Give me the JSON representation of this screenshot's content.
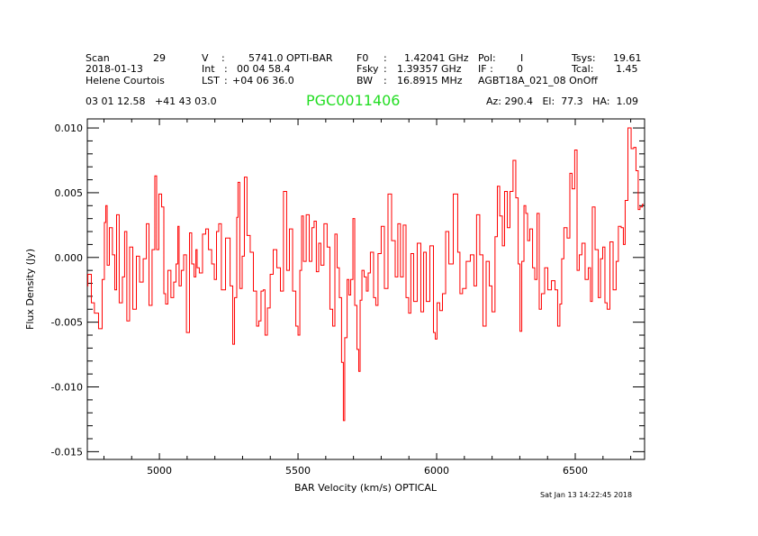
{
  "header": {
    "scan_label": "Scan",
    "scan_value": "29",
    "date": "2018-01-13",
    "observer": "Helene Courtois",
    "v_label": "V",
    "v_sep": ":",
    "v_value": "5741.0 OPTI-BAR",
    "int_label": "Int",
    "int_sep": ":",
    "int_value": "00 04 58.4",
    "lst_label": "LST",
    "lst_sep": ":",
    "lst_value": "+04 06 36.0",
    "f0_label": "F0",
    "f0_sep": ":",
    "f0_value": "1.42041 GHz",
    "fsky_label": "Fsky",
    "fsky_sep": ":",
    "fsky_value": "1.39357 GHz",
    "bw_label": "BW",
    "bw_sep": ":",
    "bw_value": "16.8915 MHz",
    "pol_label": "Pol:",
    "pol_value": "I",
    "if_label": "IF :",
    "if_value": "0",
    "project": "AGBT18A_021_08 OnOff",
    "tsys_label": "Tsys:",
    "tsys_value": "19.61",
    "tcal_label": "Tcal:",
    "tcal_value": "1.45",
    "coords": "03 01 12.58   +41 43 03.0",
    "source": "PGC0011406",
    "az_el_ha": "Az: 290.4   El:  77.3   HA:  1.09",
    "source_color": "#22dd22"
  },
  "timestamp": "Sat Jan 13 14:22:45 2018",
  "chart_data": {
    "type": "line",
    "title": "PGC0011406",
    "xlabel": "BAR Velocity (km/s) OPTICAL",
    "ylabel": "Flux Density (Jy)",
    "xlim": [
      4740,
      6750
    ],
    "ylim": [
      -0.0156,
      0.0107
    ],
    "xticks": [
      5000,
      5500,
      6000,
      6500
    ],
    "xtick_labels": [
      "5000",
      "5500",
      "6000",
      "6500"
    ],
    "yticks": [
      0.01,
      0.005,
      0.0,
      -0.005,
      -0.01,
      -0.015
    ],
    "ytick_labels": [
      "0.010",
      "0.005",
      "0.000",
      "-0.005",
      "-0.010",
      "-0.015"
    ],
    "x_minor_step": 100,
    "y_minor_step": 0.001,
    "grid": false,
    "line_color": "#ff0000",
    "series": [
      {
        "x": [
          4734,
          4750,
          4759,
          4772,
          4789,
          4798,
          4805,
          4808,
          4815,
          4824,
          4837,
          4841,
          4850,
          4860,
          4873,
          4876,
          4889,
          4896,
          4912,
          4922,
          4935,
          4948,
          4958,
          4967,
          4980,
          4987,
          4993,
          5003,
          5013,
          5019,
          5026,
          5035,
          5048,
          5055,
          5065,
          5068,
          5074,
          5084,
          5091,
          5104,
          5113,
          5120,
          5130,
          5133,
          5139,
          5149,
          5162,
          5172,
          5182,
          5195,
          5201,
          5211,
          5217,
          5230,
          5247,
          5263,
          5266,
          5276,
          5282,
          5285,
          5295,
          5302,
          5311,
          5321,
          5334,
          5344,
          5357,
          5360,
          5373,
          5376,
          5386,
          5393,
          5406,
          5415,
          5432,
          5441,
          5454,
          5464,
          5474,
          5487,
          5497,
          5503,
          5510,
          5516,
          5523,
          5536,
          5545,
          5555,
          5561,
          5571,
          5578,
          5587,
          5600,
          5610,
          5620,
          5630,
          5636,
          5646,
          5652,
          5662,
          5665,
          5672,
          5682,
          5685,
          5695,
          5701,
          5708,
          5717,
          5721,
          5727,
          5734,
          5743,
          5750,
          5756,
          5766,
          5779,
          5782,
          5795,
          5805,
          5818,
          5831,
          5844,
          5857,
          5863,
          5876,
          5883,
          5896,
          5902,
          5912,
          5922,
          5938,
          5948,
          5958,
          5967,
          5984,
          5993,
          5997,
          6006,
          6016,
          6026,
          6039,
          6049,
          6071,
          6081,
          6087,
          6100,
          6113,
          6130,
          6139,
          6149,
          6162,
          6172,
          6185,
          6195,
          6204,
          6217,
          6221,
          6234,
          6240,
          6250,
          6260,
          6269,
          6282,
          6289,
          6299,
          6302,
          6312,
          6318,
          6325,
          6331,
          6341,
          6351,
          6357,
          6367,
          6373,
          6383,
          6396,
          6406,
          6422,
          6432,
          6441,
          6448,
          6454,
          6464,
          6477,
          6484,
          6493,
          6503,
          6510,
          6519,
          6529,
          6542,
          6552,
          6558,
          6565,
          6578,
          6588,
          6594,
          6604,
          6610,
          6620,
          6630,
          6643,
          6652,
          6659,
          6672,
          6675,
          6685,
          6695,
          6708,
          6714,
          6724,
          6730,
          6737,
          6747
        ],
        "y": [
          -0.0022,
          -0.0013,
          -0.0035,
          -0.0043,
          -0.0055,
          -0.0017,
          0.0027,
          0.004,
          -0.0006,
          0.0023,
          0.0002,
          -0.0025,
          0.0033,
          -0.0035,
          -0.0015,
          0.002,
          -0.0049,
          0.0008,
          -0.004,
          0.0001,
          -0.0019,
          -0.0001,
          0.0026,
          -0.0037,
          0.0006,
          0.0063,
          0.0006,
          0.0049,
          0.0039,
          -0.0028,
          -0.0036,
          -0.001,
          -0.0031,
          -0.0019,
          -0.0005,
          0.0024,
          -0.0022,
          -0.001,
          0.0002,
          -0.0058,
          0.0019,
          -0.0005,
          -0.0015,
          0.0006,
          -0.0008,
          -0.0012,
          0.0018,
          0.0022,
          0.0006,
          -0.0005,
          -0.0017,
          0.002,
          0.0026,
          -0.0025,
          0.0015,
          -0.0022,
          -0.0067,
          -0.0031,
          0.0031,
          0.0058,
          -0.0024,
          0.0001,
          0.0062,
          0.0017,
          0.0004,
          -0.0026,
          -0.0053,
          -0.0049,
          -0.0026,
          -0.0025,
          -0.006,
          -0.0039,
          -0.0013,
          0.0006,
          -0.0008,
          -0.0026,
          0.0051,
          -0.001,
          0.0022,
          -0.0026,
          -0.0053,
          -0.006,
          -0.001,
          0.0032,
          -0.0003,
          0.0033,
          -0.0003,
          0.0023,
          0.0028,
          -0.0011,
          0.0011,
          -0.0006,
          0.0026,
          0.0008,
          -0.004,
          -0.0053,
          0.0018,
          -0.0008,
          -0.0031,
          -0.0081,
          -0.0126,
          -0.0062,
          -0.0017,
          -0.0029,
          -0.0017,
          0.003,
          -0.0037,
          -0.0071,
          -0.0088,
          -0.0033,
          -0.001,
          -0.0015,
          -0.0026,
          -0.0012,
          0.0004,
          -0.0031,
          -0.0037,
          0.0003,
          0.0024,
          -0.0024,
          0.0049,
          0.0013,
          -0.0015,
          0.0026,
          -0.0015,
          0.0025,
          -0.0031,
          -0.0043,
          0.0003,
          -0.0034,
          0.0011,
          -0.0042,
          0.0004,
          -0.0034,
          0.0009,
          -0.0058,
          -0.0063,
          -0.0035,
          -0.0041,
          -0.0028,
          0.002,
          -0.0005,
          0.0049,
          0.0004,
          -0.0028,
          -0.0024,
          -0.0003,
          0.0002,
          -0.0022,
          0.0033,
          0.0002,
          -0.0053,
          -0.0003,
          -0.0022,
          -0.0042,
          0.0016,
          0.0055,
          0.0032,
          0.0009,
          0.0051,
          0.0023,
          0.0051,
          0.0075,
          0.0046,
          -0.0005,
          -0.0057,
          -0.0003,
          0.004,
          0.0034,
          0.0013,
          0.0022,
          -0.0008,
          -0.0017,
          0.0034,
          -0.004,
          -0.0028,
          -0.0008,
          -0.0025,
          -0.0018,
          -0.0025,
          -0.0053,
          -0.0036,
          -0.0001,
          0.0023,
          0.0015,
          0.0065,
          0.0053,
          0.0083,
          -0.001,
          0.0002,
          0.0011,
          -0.0017,
          -0.0008,
          -0.0034,
          0.0039,
          0.0006,
          -0.0031,
          -0.0001,
          0.0008,
          -0.0035,
          -0.004,
          0.0012,
          -0.0025,
          -0.0003,
          0.0024,
          0.0023,
          0.001,
          0.0044,
          0.01,
          0.0084,
          0.0085,
          0.0067,
          0.0037,
          0.0039,
          0.0041
        ]
      }
    ]
  }
}
